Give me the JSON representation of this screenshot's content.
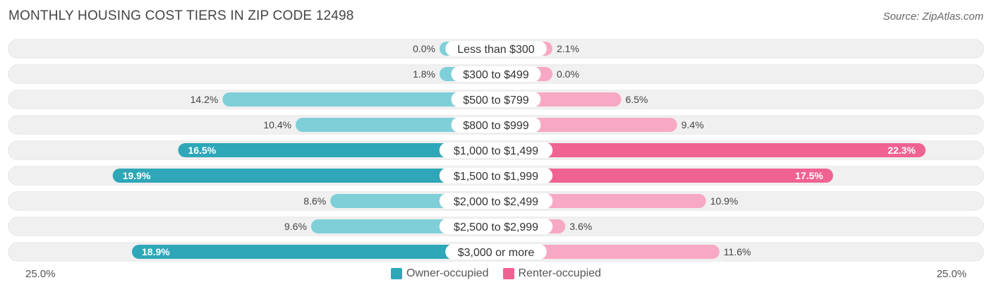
{
  "header": {
    "title": "MONTHLY HOUSING COST TIERS IN ZIP CODE 12498",
    "source": "Source: ZipAtlas.com"
  },
  "axis": {
    "left_label": "25.0%",
    "right_label": "25.0%"
  },
  "legend": {
    "owner_label": "Owner-occupied",
    "renter_label": "Renter-occupied"
  },
  "colors": {
    "owner_dark": "#2ea7b8",
    "owner_light": "#7fcfd9",
    "renter_dark": "#f06292",
    "renter_light": "#f7a8c4",
    "row_bg": "#f0f0f0"
  },
  "chart_data": {
    "type": "bar",
    "orientation": "horizontal-diverging",
    "title": "MONTHLY HOUSING COST TIERS IN ZIP CODE 12498",
    "categories": [
      "Less than $300",
      "$300 to $499",
      "$500 to $799",
      "$800 to $999",
      "$1,000 to $1,499",
      "$1,500 to $1,999",
      "$2,000 to $2,499",
      "$2,500 to $2,999",
      "$3,000 or more"
    ],
    "series": [
      {
        "name": "Owner-occupied",
        "values": [
          0.0,
          1.8,
          14.2,
          10.4,
          16.5,
          19.9,
          8.6,
          9.6,
          18.9
        ],
        "labels": [
          "0.0%",
          "1.8%",
          "14.2%",
          "10.4%",
          "16.5%",
          "19.9%",
          "8.6%",
          "9.6%",
          "18.9%"
        ]
      },
      {
        "name": "Renter-occupied",
        "values": [
          2.1,
          0.0,
          6.5,
          9.4,
          22.3,
          17.5,
          10.9,
          3.6,
          11.6
        ],
        "labels": [
          "2.1%",
          "0.0%",
          "6.5%",
          "9.4%",
          "22.3%",
          "17.5%",
          "10.9%",
          "3.6%",
          "11.6%"
        ]
      }
    ],
    "xlim": [
      -25,
      25
    ],
    "legend_position": "bottom-center"
  }
}
